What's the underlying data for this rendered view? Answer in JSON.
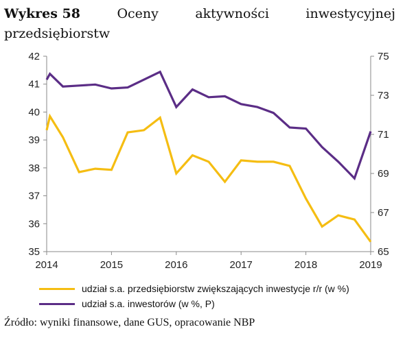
{
  "figure": {
    "label": "Wykres 58",
    "title_words": [
      "Oceny",
      "aktywności",
      "inwestycyjnej"
    ],
    "title_line2": "przedsiębiorstw",
    "source": "Źródło: wyniki finansowe, dane GUS, opracowanie NBP"
  },
  "chart_data": {
    "type": "line",
    "x_ticks": [
      "2014",
      "2015",
      "2016",
      "2017",
      "2018",
      "2019"
    ],
    "y_left": {
      "ticks": [
        "35",
        "36",
        "37",
        "38",
        "39",
        "40",
        "41",
        "42"
      ],
      "range": [
        35,
        42
      ]
    },
    "y_right": {
      "ticks": [
        "65",
        "67",
        "69",
        "71",
        "73",
        "75"
      ],
      "range": [
        65,
        75
      ]
    },
    "series": [
      {
        "name": "udział s.a. przedsiębiorstw zwiększających inwestycje r/r (w %)",
        "axis": "left",
        "color": "#f5bd12",
        "x": [
          2014.0,
          2014.05,
          2014.25,
          2014.5,
          2014.75,
          2015.0,
          2015.25,
          2015.5,
          2015.75,
          2016.0,
          2016.25,
          2016.5,
          2016.75,
          2017.0,
          2017.25,
          2017.5,
          2017.75,
          2018.0,
          2018.25,
          2018.5,
          2018.75,
          2019.0
        ],
        "values": [
          39.35,
          39.85,
          39.1,
          37.85,
          37.97,
          37.93,
          39.27,
          39.35,
          39.8,
          37.8,
          38.45,
          38.22,
          37.5,
          38.27,
          38.22,
          38.22,
          38.07,
          36.9,
          35.9,
          36.3,
          36.15,
          35.35
        ]
      },
      {
        "name": "udział s.a. inwestorów (w %, P)",
        "axis": "right",
        "color": "#5b2d86",
        "x": [
          2014.0,
          2014.05,
          2014.25,
          2014.5,
          2014.75,
          2015.0,
          2015.25,
          2015.5,
          2015.75,
          2016.0,
          2016.25,
          2016.5,
          2016.75,
          2017.0,
          2017.25,
          2017.5,
          2017.75,
          2018.0,
          2018.25,
          2018.5,
          2018.75,
          2019.0
        ],
        "values": [
          73.8,
          74.1,
          73.45,
          73.5,
          73.55,
          73.35,
          73.4,
          73.8,
          74.2,
          72.4,
          73.3,
          72.9,
          72.95,
          72.55,
          72.4,
          72.1,
          71.35,
          71.3,
          70.35,
          69.6,
          68.75,
          71.15
        ]
      }
    ]
  },
  "legend": [
    {
      "label": "udział s.a. przedsiębiorstw zwiększających inwestycje r/r (w %)",
      "color": "#f5bd12"
    },
    {
      "label": "udział s.a. inwestorów (w %, P)",
      "color": "#5b2d86"
    }
  ]
}
